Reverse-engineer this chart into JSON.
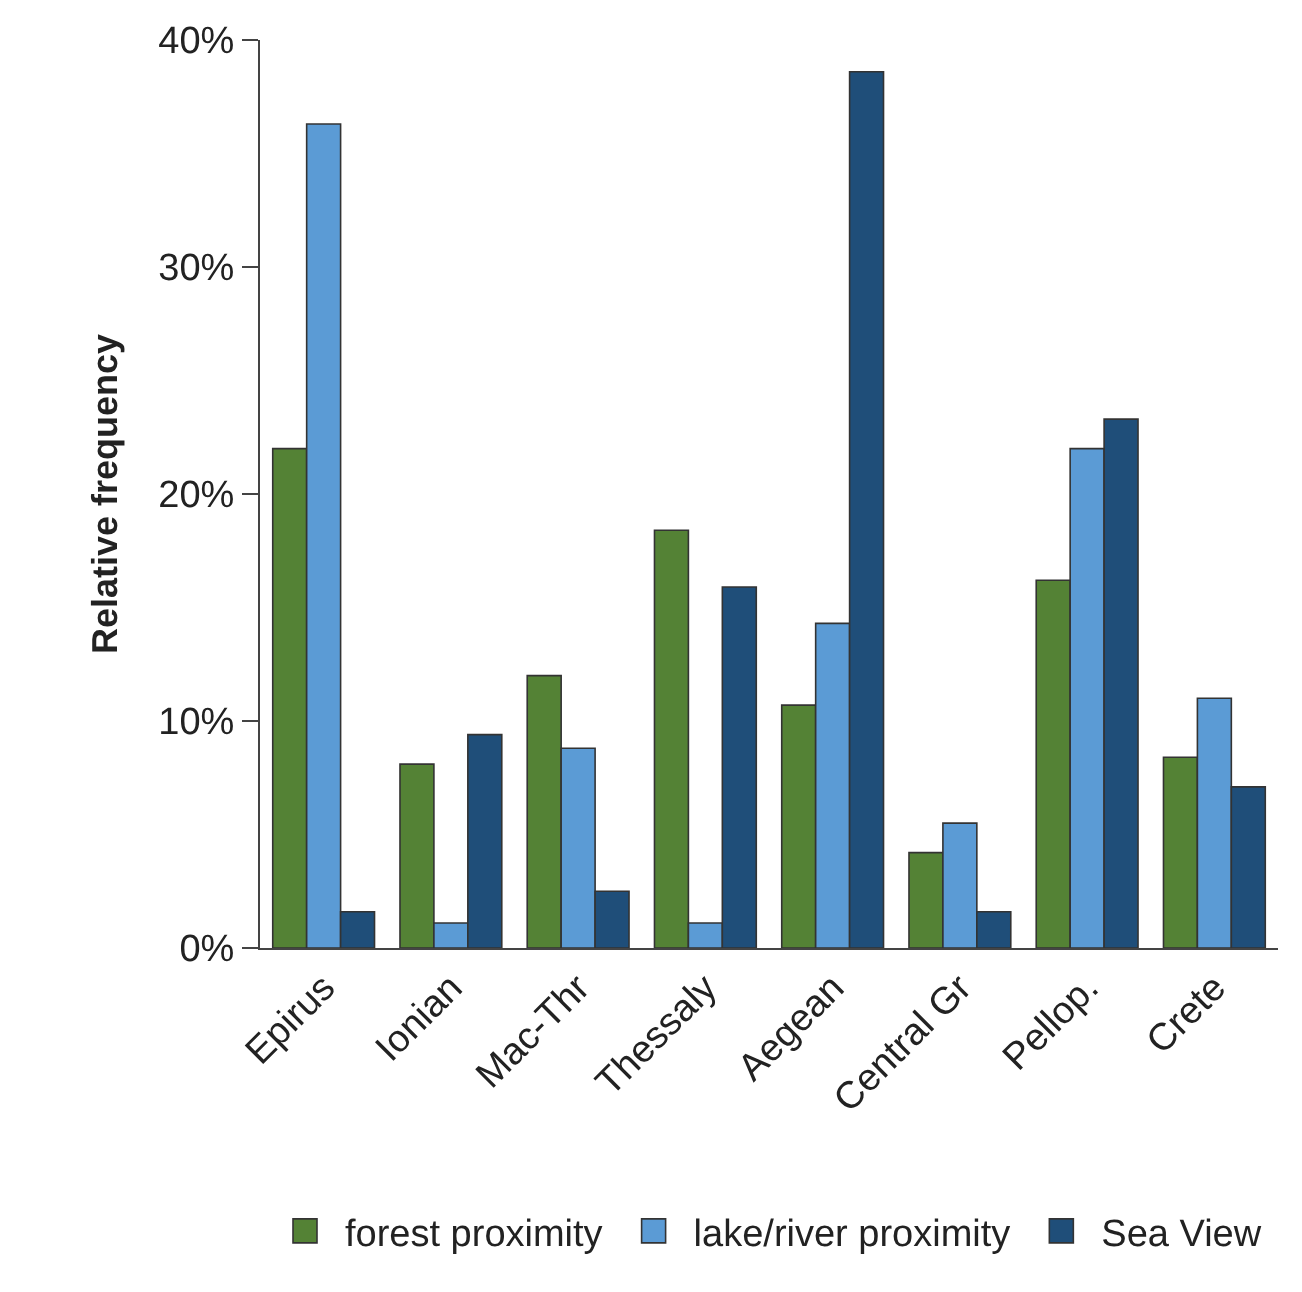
{
  "chart_data": {
    "type": "bar",
    "ylabel": "Relative frequency",
    "categories": [
      "Epirus",
      "Ionian",
      "Mac-Thr",
      "Thessaly",
      "Aegean",
      "Central Gr",
      "Pellop.",
      "Crete"
    ],
    "series": [
      {
        "name": "forest proximity",
        "color": "#548235",
        "values": [
          22.0,
          8.1,
          12.0,
          18.4,
          10.7,
          4.2,
          16.2,
          8.4
        ]
      },
      {
        "name": "lake/river proximity",
        "color": "#5b9bd5",
        "values": [
          36.3,
          1.1,
          8.8,
          1.1,
          14.3,
          5.5,
          22.0,
          11.0
        ]
      },
      {
        "name": "Sea View",
        "color": "#1f4e79",
        "values": [
          1.6,
          9.4,
          2.5,
          15.9,
          38.6,
          1.6,
          23.3,
          7.1
        ]
      }
    ],
    "ylim": [
      0,
      40
    ],
    "yticks": [
      {
        "value": 0,
        "label": "0%"
      },
      {
        "value": 10,
        "label": "10%"
      },
      {
        "value": 20,
        "label": "20%"
      },
      {
        "value": 30,
        "label": "30%"
      },
      {
        "value": 40,
        "label": "40%"
      }
    ],
    "legend": "bottom"
  }
}
